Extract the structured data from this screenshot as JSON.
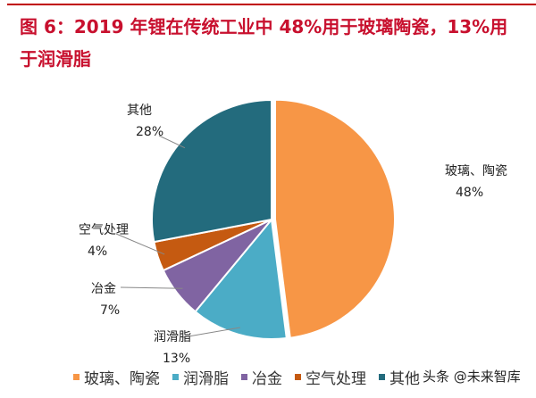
{
  "title": "图 6：2019 年锂在传统工业中 48%用于玻璃陶瓷，13%用于润滑脂",
  "watermark": "头条 @未来智库",
  "chart_data": {
    "type": "pie",
    "title": "",
    "start": "top, clockwise",
    "legend_position": "bottom",
    "categories": [
      "玻璃、陶瓷",
      "润滑脂",
      "冶金",
      "空气处理",
      "其他"
    ],
    "values": [
      48,
      13,
      7,
      4,
      28
    ],
    "value_labels": [
      "48%",
      "13%",
      "7%",
      "4%",
      "28%"
    ],
    "colors": [
      "#f79646",
      "#4bacc6",
      "#8064a2",
      "#c55a11",
      "#236b7d"
    ]
  }
}
